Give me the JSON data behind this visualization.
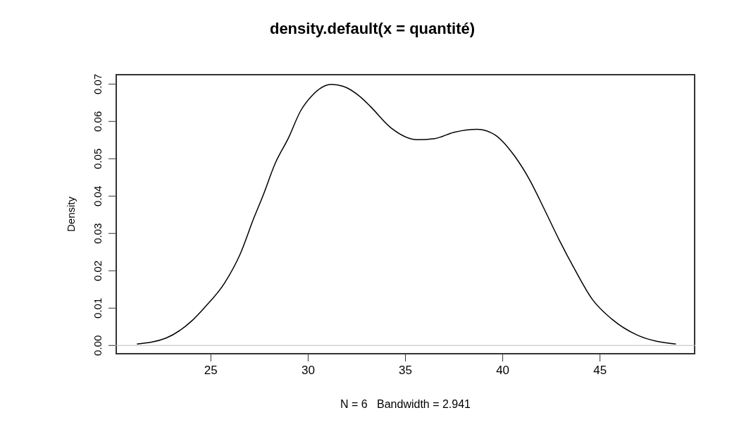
{
  "chart_data": {
    "type": "line",
    "title": "density.default(x = quantité)",
    "xlabel": "N = 6   Bandwidth = 2.941",
    "ylabel": "Density",
    "x": [
      21.2,
      22.7,
      24.0,
      24.7,
      25.7,
      26.5,
      27.2,
      27.7,
      28.3,
      29.0,
      29.6,
      30.2,
      31.2,
      31.8,
      32.7,
      33.2,
      34.3,
      35.6,
      36.5,
      37.5,
      38.7,
      39.6,
      40.6,
      41.4,
      42.1,
      42.9,
      43.7,
      44.6,
      45.6,
      46.9,
      48.9
    ],
    "series": [
      {
        "color": "#000000",
        "values": [
          0.0004,
          0.002,
          0.0065,
          0.0103,
          0.0167,
          0.0244,
          0.034,
          0.0404,
          0.0487,
          0.0557,
          0.0627,
          0.0669,
          0.0699,
          0.0694,
          0.0665,
          0.064,
          0.0581,
          0.0551,
          0.0554,
          0.0571,
          0.0579,
          0.0564,
          0.0508,
          0.0442,
          0.0369,
          0.0283,
          0.0204,
          0.0124,
          0.0071,
          0.0028,
          0.0004
        ]
      }
    ],
    "xlim": [
      20.1,
      49.9
    ],
    "ylim": [
      -0.0024,
      0.0727
    ],
    "xticks": [
      25,
      30,
      35,
      40,
      45
    ],
    "yticks": [
      {
        "value": 0,
        "label": "0.00"
      },
      {
        "value": 0.01,
        "label": "0.01"
      },
      {
        "value": 0.02,
        "label": "0.02"
      },
      {
        "value": 0.03,
        "label": "0.03"
      },
      {
        "value": 0.04,
        "label": "0.04"
      },
      {
        "value": 0.05,
        "label": "0.05"
      },
      {
        "value": 0.06,
        "label": "0.06"
      },
      {
        "value": 0.07,
        "label": "0.07"
      }
    ],
    "ref_lines": [
      {
        "axis": "y",
        "value": 0,
        "color": "#bebebe"
      }
    ]
  }
}
